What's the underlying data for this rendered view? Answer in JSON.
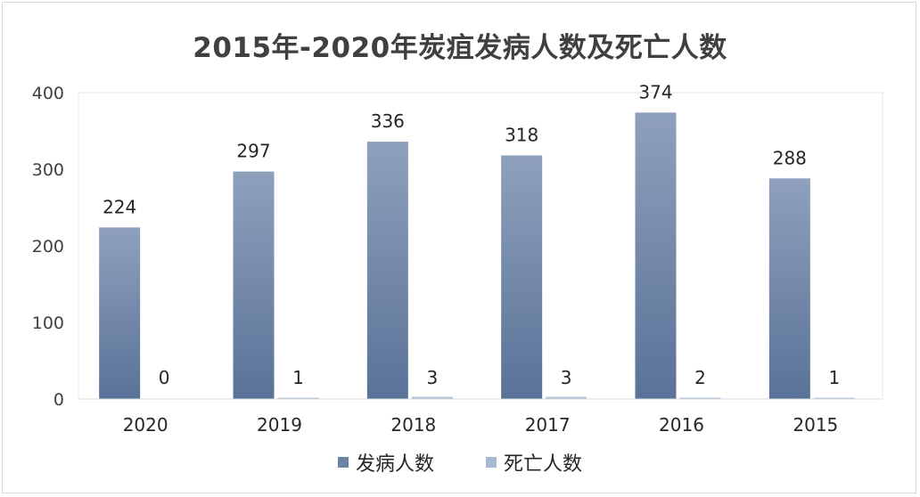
{
  "chart_data": {
    "type": "bar",
    "title": "2015年-2020年炭疽发病人数及死亡人数",
    "categories": [
      "2020",
      "2019",
      "2018",
      "2017",
      "2016",
      "2015"
    ],
    "series": [
      {
        "name": "发病人数",
        "values": [
          224,
          297,
          336,
          318,
          374,
          288
        ],
        "color": "#6a84a8"
      },
      {
        "name": "死亡人数",
        "values": [
          0,
          1,
          3,
          3,
          2,
          1
        ],
        "color": "#a7b9d2"
      }
    ],
    "ylim": [
      0,
      400
    ],
    "yticks": [
      "0",
      "100",
      "200",
      "300",
      "400"
    ],
    "grid": false,
    "legend": "bottom"
  }
}
